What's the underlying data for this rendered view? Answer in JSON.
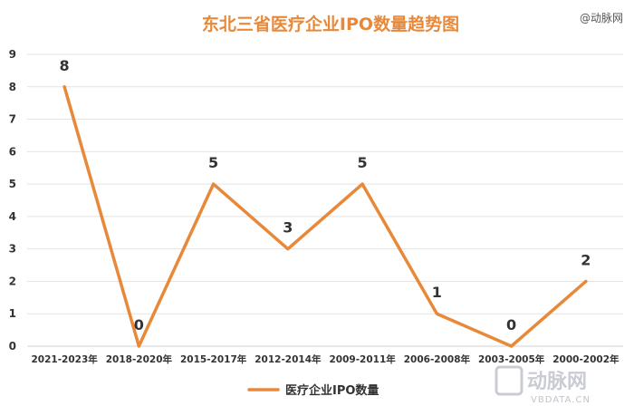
{
  "watermark_top": "@动脉网",
  "watermark_bottom": {
    "cn": "动脉网",
    "url": "VBDATA.CN"
  },
  "colors": {
    "series": "#e8893a",
    "title": "#e8893a"
  },
  "chart_data": {
    "type": "line",
    "title": "东北三省医疗企业IPO数量趋势图",
    "xlabel": "",
    "ylabel": "",
    "ylim": [
      0,
      9
    ],
    "yticks": [
      "0",
      "1",
      "2",
      "3",
      "4",
      "5",
      "6",
      "7",
      "8",
      "9"
    ],
    "categories": [
      "2021-2023年",
      "2018-2020年",
      "2015-2017年",
      "2012-2014年",
      "2009-2011年",
      "2006-2008年",
      "2003-2005年",
      "2000-2002年"
    ],
    "series": [
      {
        "name": "医疗企业IPO数量",
        "values": [
          8,
          0,
          5,
          3,
          5,
          1,
          0,
          2
        ]
      }
    ],
    "data_labels": [
      "8",
      "0",
      "5",
      "3",
      "5",
      "1",
      "0",
      "2"
    ],
    "grid": true,
    "legend_position": "bottom"
  }
}
